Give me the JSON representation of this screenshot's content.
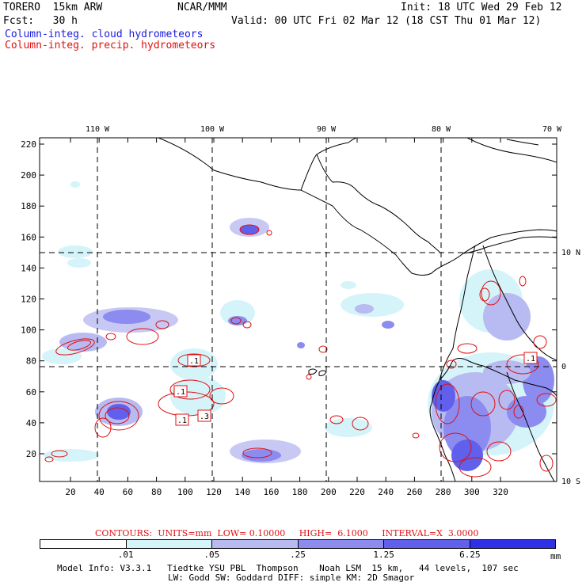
{
  "header": {
    "model": "TORERO  15km ARW",
    "agency": "NCAR/MMM",
    "init": "Init: 18 UTC Wed 29 Feb 12",
    "fcst": "Fcst:   30 h",
    "valid": "Valid: 00 UTC Fri 02 Mar 12 (18 CST Thu 01 Mar 12)",
    "field1": "Column-integ. cloud hydrometeors",
    "field2": "Column-integ. precip. hydrometeors"
  },
  "map": {
    "top_lon_labels": [
      "110 W",
      "100 W",
      "90 W",
      "80 W",
      "70 W"
    ],
    "right_lat_labels": [
      "10 N",
      "0",
      "10 S"
    ],
    "y_ticks": [
      "220",
      "200",
      "180",
      "160",
      "140",
      "120",
      "100",
      "80",
      "60",
      "40",
      "20"
    ],
    "x_ticks": [
      "20",
      "40",
      "60",
      "80",
      "100",
      "120",
      "140",
      "160",
      "180",
      "200",
      "220",
      "240",
      "260",
      "280",
      "300",
      "320"
    ],
    "contour_labels": [
      ".1",
      ".1",
      ".3",
      ".1",
      ".1"
    ]
  },
  "contours_info": {
    "text": "CONTOURS:  UNITS=mm  LOW= 0.10000     HIGH=  6.1000     INTERVAL=X  3.0000"
  },
  "colorbar": {
    "labels": [
      ".01",
      ".05",
      ".25",
      "1.25",
      "6.25"
    ],
    "unit": "mm",
    "colors": [
      "#ffffff",
      "#d4f4fa",
      "#b8baf2",
      "#8c8cf0",
      "#6060ec",
      "#3030e8"
    ]
  },
  "footer": {
    "line1": "Model Info: V3.3.1   Tiedtke YSU PBL  Thompson    Noah LSM  15 km,   44 levels,  107 sec",
    "line2": "LW: Godd SW: Goddard DIFF: simple KM: 2D Smagor"
  }
}
